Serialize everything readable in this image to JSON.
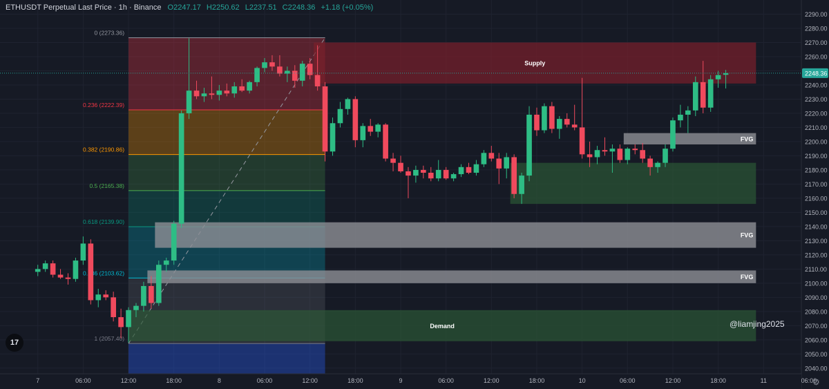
{
  "header": {
    "symbol": "ETHUSDT Perpetual Last Price",
    "separator": "·",
    "timeframe": "1h",
    "exchange": "Binance",
    "open": "O2247.17",
    "high": "H2250.62",
    "low": "L2237.51",
    "close": "C2248.36",
    "change": "+1.18 (+0.05%)"
  },
  "watermark": "@liamjing2025",
  "logo_text": "17",
  "colors": {
    "up": "#26a69a",
    "up_candle": "#2ebd85",
    "down": "#f23645",
    "down_candle": "#f04a5d",
    "background": "#161a25",
    "supply_zone": "#7a1f2b",
    "demand_zone": "#2c5a35",
    "fvg_zone": "#8d8f95",
    "price_label": "#26a69a"
  },
  "chart_data": {
    "type": "candlestick",
    "title": "",
    "ylim": [
      2036,
      2300
    ],
    "y_ticks": [
      2040,
      2050,
      2060,
      2070,
      2080,
      2090,
      2100,
      2110,
      2120,
      2130,
      2140,
      2150,
      2160,
      2170,
      2180,
      2190,
      2200,
      2210,
      2220,
      2230,
      2240,
      2250,
      2260,
      2270,
      2280,
      2290
    ],
    "y_tick_labels": [
      "2040.00",
      "2050.00",
      "2060.00",
      "2070.00",
      "2080.00",
      "2090.00",
      "2100.00",
      "2110.00",
      "2120.00",
      "2130.00",
      "2140.00",
      "2150.00",
      "2160.00",
      "2170.00",
      "2180.00",
      "2190.00",
      "2200.00",
      "2210.00",
      "2220.00",
      "2230.00",
      "2240.00",
      "2250.00",
      "2260.00",
      "2270.00",
      "2280.00",
      "2290.00"
    ],
    "time_start_hours": -5,
    "time_end_hours": 101,
    "x_ticks": [
      {
        "t": 0,
        "label": "7"
      },
      {
        "t": 6,
        "label": "06:00"
      },
      {
        "t": 12,
        "label": "12:00"
      },
      {
        "t": 18,
        "label": "18:00"
      },
      {
        "t": 24,
        "label": "8"
      },
      {
        "t": 30,
        "label": "06:00"
      },
      {
        "t": 36,
        "label": "12:00"
      },
      {
        "t": 42,
        "label": "18:00"
      },
      {
        "t": 48,
        "label": "9"
      },
      {
        "t": 54,
        "label": "06:00"
      },
      {
        "t": 60,
        "label": "12:00"
      },
      {
        "t": 66,
        "label": "18:00"
      },
      {
        "t": 72,
        "label": "10"
      },
      {
        "t": 78,
        "label": "06:00"
      },
      {
        "t": 84,
        "label": "12:00"
      },
      {
        "t": 90,
        "label": "18:00"
      },
      {
        "t": 96,
        "label": "11"
      },
      {
        "t": 102,
        "label": "06:00"
      }
    ],
    "last_price": 2248.36,
    "last_price_label": "2248.36",
    "candles": [
      {
        "t": 0,
        "o": 2108,
        "h": 2113,
        "l": 2105,
        "c": 2110
      },
      {
        "t": 1,
        "o": 2110,
        "h": 2116,
        "l": 2108,
        "c": 2114
      },
      {
        "t": 2,
        "o": 2114,
        "h": 2116,
        "l": 2104,
        "c": 2106
      },
      {
        "t": 3,
        "o": 2106,
        "h": 2110,
        "l": 2103,
        "c": 2104
      },
      {
        "t": 4,
        "o": 2104,
        "h": 2107,
        "l": 2099,
        "c": 2103
      },
      {
        "t": 5,
        "o": 2103,
        "h": 2118,
        "l": 2101,
        "c": 2116
      },
      {
        "t": 6,
        "o": 2116,
        "h": 2133,
        "l": 2113,
        "c": 2128
      },
      {
        "t": 7,
        "o": 2128,
        "h": 2131,
        "l": 2085,
        "c": 2088
      },
      {
        "t": 8,
        "o": 2088,
        "h": 2096,
        "l": 2083,
        "c": 2092
      },
      {
        "t": 9,
        "o": 2092,
        "h": 2095,
        "l": 2088,
        "c": 2090
      },
      {
        "t": 10,
        "o": 2090,
        "h": 2094,
        "l": 2073,
        "c": 2076
      },
      {
        "t": 11,
        "o": 2076,
        "h": 2082,
        "l": 2061,
        "c": 2069
      },
      {
        "t": 12,
        "o": 2069,
        "h": 2083,
        "l": 2058,
        "c": 2081
      },
      {
        "t": 13,
        "o": 2081,
        "h": 2086,
        "l": 2076,
        "c": 2084
      },
      {
        "t": 14,
        "o": 2084,
        "h": 2101,
        "l": 2080,
        "c": 2098
      },
      {
        "t": 15,
        "o": 2098,
        "h": 2105,
        "l": 2082,
        "c": 2086
      },
      {
        "t": 16,
        "o": 2086,
        "h": 2116,
        "l": 2084,
        "c": 2113
      },
      {
        "t": 17,
        "o": 2113,
        "h": 2118,
        "l": 2108,
        "c": 2116
      },
      {
        "t": 18,
        "o": 2116,
        "h": 2144,
        "l": 2113,
        "c": 2142
      },
      {
        "t": 19,
        "o": 2142,
        "h": 2222,
        "l": 2139,
        "c": 2220
      },
      {
        "t": 20,
        "o": 2220,
        "h": 2273,
        "l": 2216,
        "c": 2236
      },
      {
        "t": 21,
        "o": 2236,
        "h": 2243,
        "l": 2230,
        "c": 2232
      },
      {
        "t": 22,
        "o": 2232,
        "h": 2238,
        "l": 2228,
        "c": 2234
      },
      {
        "t": 23,
        "o": 2234,
        "h": 2246,
        "l": 2230,
        "c": 2233
      },
      {
        "t": 24,
        "o": 2233,
        "h": 2240,
        "l": 2229,
        "c": 2236
      },
      {
        "t": 25,
        "o": 2236,
        "h": 2241,
        "l": 2232,
        "c": 2234
      },
      {
        "t": 26,
        "o": 2234,
        "h": 2242,
        "l": 2231,
        "c": 2239
      },
      {
        "t": 27,
        "o": 2239,
        "h": 2244,
        "l": 2235,
        "c": 2236
      },
      {
        "t": 28,
        "o": 2236,
        "h": 2243,
        "l": 2234,
        "c": 2242
      },
      {
        "t": 29,
        "o": 2242,
        "h": 2253,
        "l": 2239,
        "c": 2252
      },
      {
        "t": 30,
        "o": 2252,
        "h": 2259,
        "l": 2249,
        "c": 2256
      },
      {
        "t": 31,
        "o": 2256,
        "h": 2261,
        "l": 2250,
        "c": 2253
      },
      {
        "t": 32,
        "o": 2253,
        "h": 2261,
        "l": 2246,
        "c": 2248
      },
      {
        "t": 33,
        "o": 2248,
        "h": 2253,
        "l": 2242,
        "c": 2250
      },
      {
        "t": 34,
        "o": 2250,
        "h": 2254,
        "l": 2238,
        "c": 2243
      },
      {
        "t": 35,
        "o": 2243,
        "h": 2257,
        "l": 2239,
        "c": 2255
      },
      {
        "t": 36,
        "o": 2255,
        "h": 2259,
        "l": 2244,
        "c": 2247
      },
      {
        "t": 37,
        "o": 2247,
        "h": 2268,
        "l": 2236,
        "c": 2239
      },
      {
        "t": 38,
        "o": 2239,
        "h": 2242,
        "l": 2186,
        "c": 2193
      },
      {
        "t": 39,
        "o": 2193,
        "h": 2217,
        "l": 2190,
        "c": 2213
      },
      {
        "t": 40,
        "o": 2213,
        "h": 2228,
        "l": 2210,
        "c": 2223
      },
      {
        "t": 41,
        "o": 2223,
        "h": 2231,
        "l": 2219,
        "c": 2230
      },
      {
        "t": 42,
        "o": 2230,
        "h": 2232,
        "l": 2196,
        "c": 2201
      },
      {
        "t": 43,
        "o": 2201,
        "h": 2213,
        "l": 2196,
        "c": 2211
      },
      {
        "t": 44,
        "o": 2211,
        "h": 2216,
        "l": 2204,
        "c": 2207
      },
      {
        "t": 45,
        "o": 2207,
        "h": 2213,
        "l": 2203,
        "c": 2212
      },
      {
        "t": 46,
        "o": 2212,
        "h": 2213,
        "l": 2186,
        "c": 2188
      },
      {
        "t": 47,
        "o": 2188,
        "h": 2192,
        "l": 2179,
        "c": 2185
      },
      {
        "t": 48,
        "o": 2185,
        "h": 2190,
        "l": 2178,
        "c": 2179
      },
      {
        "t": 49,
        "o": 2179,
        "h": 2182,
        "l": 2160,
        "c": 2176
      },
      {
        "t": 50,
        "o": 2176,
        "h": 2183,
        "l": 2171,
        "c": 2180
      },
      {
        "t": 51,
        "o": 2180,
        "h": 2183,
        "l": 2174,
        "c": 2178
      },
      {
        "t": 52,
        "o": 2178,
        "h": 2182,
        "l": 2172,
        "c": 2174
      },
      {
        "t": 53,
        "o": 2174,
        "h": 2187,
        "l": 2172,
        "c": 2180
      },
      {
        "t": 54,
        "o": 2180,
        "h": 2182,
        "l": 2173,
        "c": 2174
      },
      {
        "t": 55,
        "o": 2174,
        "h": 2178,
        "l": 2172,
        "c": 2177
      },
      {
        "t": 56,
        "o": 2177,
        "h": 2184,
        "l": 2175,
        "c": 2182
      },
      {
        "t": 57,
        "o": 2182,
        "h": 2185,
        "l": 2177,
        "c": 2178
      },
      {
        "t": 58,
        "o": 2178,
        "h": 2187,
        "l": 2176,
        "c": 2184
      },
      {
        "t": 59,
        "o": 2184,
        "h": 2194,
        "l": 2182,
        "c": 2192
      },
      {
        "t": 60,
        "o": 2192,
        "h": 2197,
        "l": 2186,
        "c": 2188
      },
      {
        "t": 61,
        "o": 2188,
        "h": 2192,
        "l": 2170,
        "c": 2181
      },
      {
        "t": 62,
        "o": 2181,
        "h": 2192,
        "l": 2174,
        "c": 2189
      },
      {
        "t": 63,
        "o": 2189,
        "h": 2191,
        "l": 2160,
        "c": 2163
      },
      {
        "t": 64,
        "o": 2163,
        "h": 2178,
        "l": 2156,
        "c": 2176
      },
      {
        "t": 65,
        "o": 2176,
        "h": 2225,
        "l": 2172,
        "c": 2219
      },
      {
        "t": 66,
        "o": 2219,
        "h": 2224,
        "l": 2204,
        "c": 2208
      },
      {
        "t": 67,
        "o": 2208,
        "h": 2227,
        "l": 2206,
        "c": 2225
      },
      {
        "t": 68,
        "o": 2225,
        "h": 2228,
        "l": 2206,
        "c": 2209
      },
      {
        "t": 69,
        "o": 2209,
        "h": 2218,
        "l": 2202,
        "c": 2216
      },
      {
        "t": 70,
        "o": 2216,
        "h": 2220,
        "l": 2210,
        "c": 2212
      },
      {
        "t": 71,
        "o": 2212,
        "h": 2226,
        "l": 2208,
        "c": 2210
      },
      {
        "t": 72,
        "o": 2210,
        "h": 2245,
        "l": 2188,
        "c": 2191
      },
      {
        "t": 73,
        "o": 2191,
        "h": 2200,
        "l": 2182,
        "c": 2189
      },
      {
        "t": 74,
        "o": 2189,
        "h": 2197,
        "l": 2184,
        "c": 2194
      },
      {
        "t": 75,
        "o": 2194,
        "h": 2203,
        "l": 2190,
        "c": 2193
      },
      {
        "t": 76,
        "o": 2193,
        "h": 2198,
        "l": 2178,
        "c": 2195
      },
      {
        "t": 77,
        "o": 2195,
        "h": 2198,
        "l": 2185,
        "c": 2187
      },
      {
        "t": 78,
        "o": 2187,
        "h": 2196,
        "l": 2184,
        "c": 2195
      },
      {
        "t": 79,
        "o": 2195,
        "h": 2198,
        "l": 2191,
        "c": 2194
      },
      {
        "t": 80,
        "o": 2194,
        "h": 2199,
        "l": 2185,
        "c": 2188
      },
      {
        "t": 81,
        "o": 2188,
        "h": 2190,
        "l": 2176,
        "c": 2182
      },
      {
        "t": 82,
        "o": 2182,
        "h": 2186,
        "l": 2178,
        "c": 2185
      },
      {
        "t": 83,
        "o": 2185,
        "h": 2198,
        "l": 2182,
        "c": 2195
      },
      {
        "t": 84,
        "o": 2195,
        "h": 2217,
        "l": 2193,
        "c": 2215
      },
      {
        "t": 85,
        "o": 2215,
        "h": 2226,
        "l": 2210,
        "c": 2219
      },
      {
        "t": 86,
        "o": 2219,
        "h": 2225,
        "l": 2206,
        "c": 2222
      },
      {
        "t": 87,
        "o": 2222,
        "h": 2246,
        "l": 2218,
        "c": 2242
      },
      {
        "t": 88,
        "o": 2242,
        "h": 2257,
        "l": 2220,
        "c": 2224
      },
      {
        "t": 89,
        "o": 2224,
        "h": 2247,
        "l": 2221,
        "c": 2244
      },
      {
        "t": 90,
        "o": 2244,
        "h": 2250,
        "l": 2238,
        "c": 2247
      },
      {
        "t": 91,
        "o": 2247.17,
        "h": 2250.62,
        "l": 2237.51,
        "c": 2248.36
      }
    ],
    "fibonacci": {
      "t_start": 12,
      "t_end": 38,
      "from_price": 2057.4,
      "to_price": 2273.36,
      "levels": [
        {
          "price": 2273.36,
          "label": "0 (2273.36)",
          "color": "#9598a1"
        },
        {
          "price": 2222.39,
          "label": "0.236 (2222.39)",
          "color": "#f23645"
        },
        {
          "price": 2190.86,
          "label": "0.382 (2190.86)",
          "color": "#ff9800"
        },
        {
          "price": 2165.38,
          "label": "0.5 (2165.38)",
          "color": "#4caf50"
        },
        {
          "price": 2139.9,
          "label": "0.618 (2139.90)",
          "color": "#089981"
        },
        {
          "price": 2103.62,
          "label": "0.786 (2103.62)",
          "color": "#00bcd4"
        },
        {
          "price": 2057.4,
          "label": "1 (2057.40)",
          "color": "#787b86"
        }
      ],
      "bottom_extension_price": 2036
    },
    "zones": [
      {
        "type": "supply",
        "label": "Supply",
        "t_start": 36.5,
        "t_end": 95,
        "top": 2270,
        "bottom": 2241,
        "color": "#7a1f2b"
      },
      {
        "type": "fvg",
        "label": "FVG",
        "t_start": 77.5,
        "t_end": 95,
        "top": 2206,
        "bottom": 2198,
        "color": "#8d8f95"
      },
      {
        "type": "demand-ob",
        "label": "",
        "t_start": 62.5,
        "t_end": 95,
        "top": 2185,
        "bottom": 2156,
        "color": "#2c5a35"
      },
      {
        "type": "fvg",
        "label": "FVG",
        "t_start": 15.5,
        "t_end": 95,
        "top": 2143,
        "bottom": 2125,
        "color": "#8d8f95"
      },
      {
        "type": "fvg",
        "label": "FVG",
        "t_start": 14.5,
        "t_end": 95,
        "top": 2109,
        "bottom": 2100,
        "color": "#8d8f95"
      },
      {
        "type": "demand",
        "label": "Demand",
        "t_start": 12,
        "t_end": 95,
        "top": 2081,
        "bottom": 2059,
        "color": "#2c5a35"
      }
    ]
  }
}
